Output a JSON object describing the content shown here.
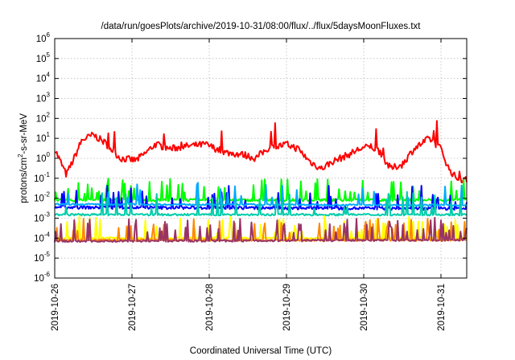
{
  "chart_data": {
    "type": "line",
    "title": "/data/run/goesPlots/archive/2019-10-31/08:00/flux/../flux/5daysMoonFluxes.txt",
    "xlabel": "Coordinated Universal Time (UTC)",
    "ylabel": "protons/cm²-s-sr-MeV",
    "ylabel_parts": {
      "a": "protons/cm",
      "sup": "2",
      "b": "-s-sr-MeV"
    },
    "y_scale": "log",
    "ylim_exponents": [
      -6,
      6
    ],
    "ytick_exponents": [
      -6,
      -5,
      -4,
      -3,
      -2,
      -1,
      0,
      1,
      2,
      3,
      4,
      5,
      6
    ],
    "ytick_base": "10",
    "xlim_days": [
      "2019-10-26",
      "2019-10-31 08:00"
    ],
    "x_categories": [
      "2019-10-26",
      "2019-10-27",
      "2019-10-28",
      "2019-10-29",
      "2019-10-30",
      "2019-10-31"
    ],
    "grid": true,
    "legend": "none",
    "series": [
      {
        "color": "#ff0000",
        "base": [
          [
            0,
            3
          ],
          [
            0.15,
            0.15
          ],
          [
            0.25,
            1
          ],
          [
            0.35,
            8
          ],
          [
            0.5,
            15
          ],
          [
            0.65,
            6
          ],
          [
            0.85,
            1
          ],
          [
            1.05,
            0.8
          ],
          [
            1.15,
            1.5
          ],
          [
            1.3,
            5
          ],
          [
            1.5,
            3
          ],
          [
            1.7,
            4
          ],
          [
            1.95,
            5
          ],
          [
            2.2,
            2
          ],
          [
            2.45,
            1.5
          ],
          [
            2.6,
            1
          ],
          [
            2.75,
            3
          ],
          [
            3.0,
            5
          ],
          [
            3.15,
            3
          ],
          [
            3.3,
            0.7
          ],
          [
            3.45,
            0.3
          ],
          [
            3.6,
            0.7
          ],
          [
            3.8,
            1.5
          ],
          [
            3.95,
            3
          ],
          [
            4.1,
            4
          ],
          [
            4.2,
            2
          ],
          [
            4.35,
            0.3
          ],
          [
            4.5,
            0.5
          ],
          [
            4.65,
            3
          ],
          [
            4.85,
            10
          ],
          [
            5.0,
            3
          ],
          [
            5.1,
            0.3
          ],
          [
            5.2,
            0.1
          ],
          [
            5.33,
            0.08
          ]
        ],
        "noise": 0.35,
        "spikes": 0.02
      },
      {
        "color": "#00ff00",
        "base": [
          [
            0,
            0.008
          ],
          [
            5.33,
            0.008
          ]
        ],
        "noise": 0.12,
        "spikes": 0.12
      },
      {
        "color": "#0000ff",
        "base": [
          [
            0,
            0.0035
          ],
          [
            5.33,
            0.003
          ]
        ],
        "noise": 0.15,
        "spikes": 0.1
      },
      {
        "color": "#00aaff",
        "base": [
          [
            0,
            0.005
          ],
          [
            5.33,
            0.0045
          ]
        ],
        "noise": 0.08,
        "spikes": 0.05
      },
      {
        "color": "#00ccaa",
        "base": [
          [
            0,
            0.0015
          ],
          [
            5.33,
            0.0015
          ]
        ],
        "noise": 0.1,
        "spikes": 0.08
      },
      {
        "color": "#ffff00",
        "base": [
          [
            0,
            0.0001
          ],
          [
            5.33,
            0.0001
          ]
        ],
        "noise": 0.1,
        "spikes": 0.12
      },
      {
        "color": "#ff8800",
        "base": [
          [
            0,
            8e-05
          ],
          [
            5.33,
            8e-05
          ]
        ],
        "noise": 0.1,
        "spikes": 0.12
      },
      {
        "color": "#993366",
        "base": [
          [
            0,
            7e-05
          ],
          [
            5.33,
            8e-05
          ]
        ],
        "noise": 0.1,
        "spikes": 0.15
      }
    ]
  }
}
